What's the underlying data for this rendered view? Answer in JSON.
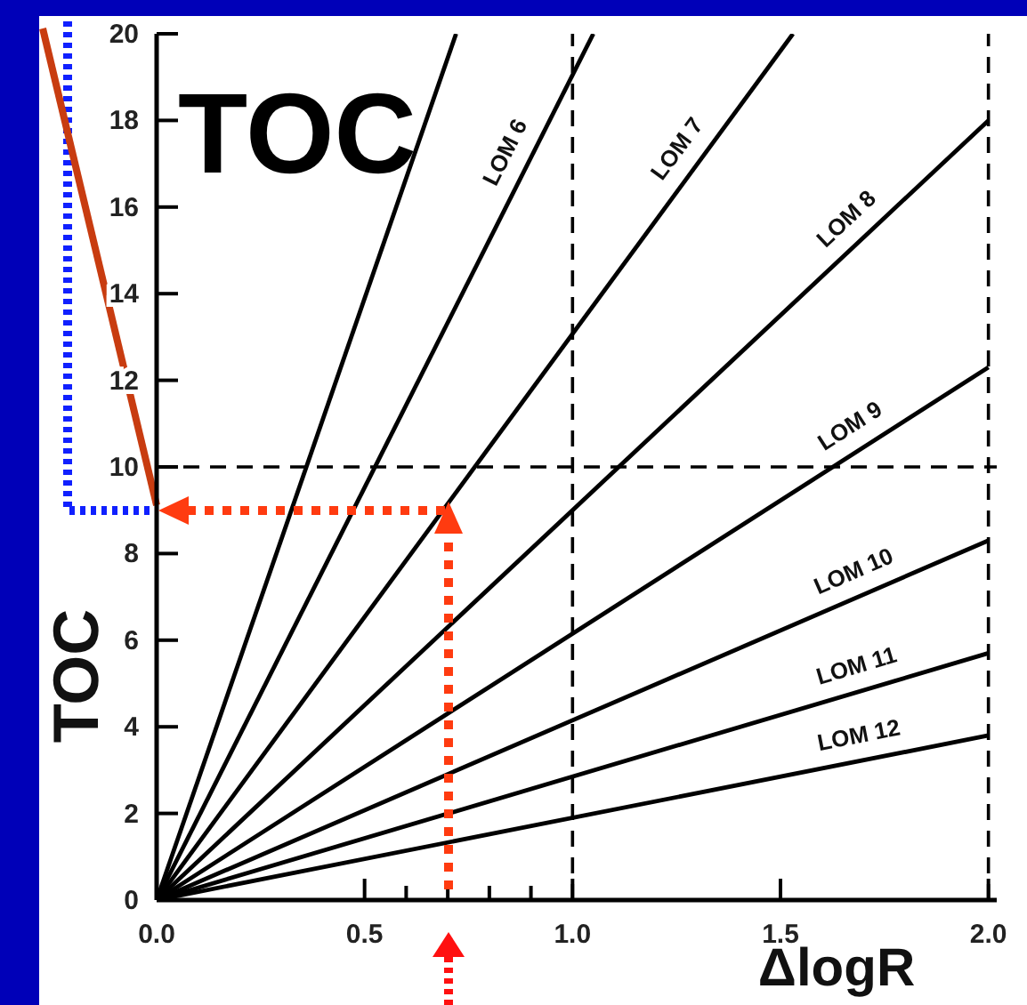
{
  "chart_data": {
    "type": "line",
    "title": "TOC",
    "xlabel": "ΔlogR",
    "ylabel": "TOC",
    "xlim": [
      0,
      2.02
    ],
    "ylim": [
      0,
      20
    ],
    "xticks": [
      {
        "value": 0,
        "label": "0.0"
      },
      {
        "value": 0.5,
        "label": "0.5"
      },
      {
        "value": 0.6,
        "label": null
      },
      {
        "value": 0.7,
        "label": null
      },
      {
        "value": 0.8,
        "label": null
      },
      {
        "value": 0.9,
        "label": null
      },
      {
        "value": 1,
        "label": "1.0"
      },
      {
        "value": 1.5,
        "label": "1.5"
      },
      {
        "value": 2,
        "label": "2.0"
      }
    ],
    "yticks": [
      0,
      2,
      4,
      6,
      8,
      10,
      12,
      14,
      16,
      18,
      20
    ],
    "grid": false,
    "legend": false,
    "marker": "none",
    "line_style": "solid",
    "ref_lines": [
      {
        "axis": "x",
        "value": 1,
        "line_style": "dashed",
        "color": "#000000"
      },
      {
        "axis": "x",
        "value": 2,
        "line_style": "dashed",
        "color": "#000000"
      },
      {
        "axis": "y",
        "value": 10,
        "line_style": "dashed",
        "color": "#000000"
      }
    ],
    "series": [
      {
        "color": "#000000",
        "x": [
          0,
          0.72
        ],
        "values": [
          0,
          20
        ]
      },
      {
        "name": "LOM 6",
        "color": "#000000",
        "x": [
          0,
          1.05
        ],
        "values": [
          0,
          20
        ]
      },
      {
        "name": "LOM 7",
        "color": "#000000",
        "x": [
          0,
          1.53
        ],
        "values": [
          0,
          20
        ]
      },
      {
        "name": "LOM 8",
        "color": "#000000",
        "x": [
          0,
          2
        ],
        "values": [
          0,
          18
        ]
      },
      {
        "name": "LOM 9",
        "color": "#000000",
        "x": [
          0,
          2
        ],
        "values": [
          0,
          12.3
        ]
      },
      {
        "name": "LOM 10",
        "color": "#000000",
        "x": [
          0,
          2
        ],
        "values": [
          0,
          8.3
        ]
      },
      {
        "name": "LOM 11",
        "color": "#000000",
        "x": [
          0,
          2
        ],
        "values": [
          0,
          5.7
        ]
      },
      {
        "name": "LOM 12",
        "color": "#000000",
        "x": [
          0,
          2
        ],
        "values": [
          0,
          3.8
        ]
      }
    ]
  }
}
